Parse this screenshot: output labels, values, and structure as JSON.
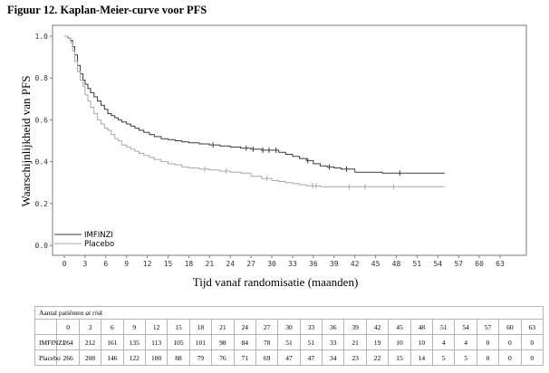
{
  "figure_title": "Figuur 12. Kaplan-Meier-curve voor PFS",
  "chart_data": {
    "type": "line",
    "title": "Figuur 12. Kaplan-Meier-curve voor PFS",
    "xlabel": "Tijd vanaf randomisatie (maanden)",
    "ylabel": "Waarschijnlijkheid van PFS",
    "xlim": [
      0,
      63
    ],
    "ylim": [
      0,
      1
    ],
    "xticks": [
      0,
      3,
      6,
      9,
      12,
      15,
      18,
      21,
      24,
      27,
      30,
      33,
      36,
      39,
      42,
      45,
      48,
      51,
      54,
      57,
      60,
      63
    ],
    "yticks": [
      0.0,
      0.2,
      0.4,
      0.6,
      0.8,
      1.0
    ],
    "ytick_labels": [
      "0.0",
      "0.2",
      "0.4",
      "0.6",
      "0.8",
      "1.0"
    ],
    "grid": false,
    "legend_position": "bottom-left",
    "series": [
      {
        "name": "IMFINZI",
        "color": "#3a3a3a",
        "x": [
          0,
          0.5,
          0.9,
          1.2,
          1.5,
          1.9,
          2.3,
          2.7,
          3.0,
          3.4,
          3.8,
          4.3,
          4.8,
          5.3,
          5.8,
          6.3,
          6.8,
          7.3,
          7.8,
          8.3,
          9.0,
          9.6,
          10.2,
          10.8,
          11.5,
          12.3,
          13.0,
          14.0,
          15.0,
          16.0,
          17.0,
          18.0,
          19.5,
          21.0,
          22.5,
          24.0,
          25.5,
          27.0,
          28.5,
          30.0,
          31.0,
          32.0,
          33.0,
          34.0,
          35.0,
          36.0,
          37.0,
          38.0,
          39.0,
          40.0,
          42.0,
          44.0,
          45.0,
          46.0,
          48.0,
          51.0,
          54.0,
          55.0
        ],
        "y": [
          1.0,
          0.99,
          0.98,
          0.95,
          0.91,
          0.86,
          0.82,
          0.79,
          0.77,
          0.75,
          0.73,
          0.71,
          0.69,
          0.67,
          0.65,
          0.63,
          0.62,
          0.61,
          0.6,
          0.59,
          0.58,
          0.57,
          0.56,
          0.55,
          0.54,
          0.53,
          0.52,
          0.51,
          0.505,
          0.5,
          0.495,
          0.49,
          0.485,
          0.48,
          0.475,
          0.47,
          0.465,
          0.46,
          0.455,
          0.455,
          0.445,
          0.435,
          0.425,
          0.415,
          0.405,
          0.39,
          0.38,
          0.375,
          0.37,
          0.365,
          0.35,
          0.35,
          0.35,
          0.345,
          0.345,
          0.345,
          0.345,
          0.345
        ],
        "censor_x": [
          21.5,
          26.3,
          27.3,
          28.7,
          29.6,
          30.6,
          35.2,
          38.3,
          40.8,
          48.5
        ]
      },
      {
        "name": "Placebo",
        "color": "#a8a8a8",
        "x": [
          0,
          0.5,
          0.9,
          1.2,
          1.5,
          1.9,
          2.3,
          2.7,
          3.0,
          3.4,
          3.8,
          4.3,
          4.8,
          5.3,
          5.8,
          6.3,
          6.8,
          7.3,
          7.8,
          8.3,
          9.0,
          9.6,
          10.2,
          10.8,
          11.5,
          12.3,
          13.0,
          14.0,
          15.0,
          16.0,
          17.0,
          18.0,
          19.5,
          21.0,
          22.5,
          24.0,
          25.5,
          27.0,
          28.5,
          30.0,
          31.0,
          32.0,
          33.0,
          34.0,
          35.0,
          36.0,
          37.0,
          38.0,
          39.0,
          40.0,
          42.0,
          44.0,
          45.0,
          46.0,
          48.0,
          51.0,
          54.0,
          55.0
        ],
        "y": [
          1.0,
          0.99,
          0.97,
          0.93,
          0.88,
          0.83,
          0.79,
          0.76,
          0.72,
          0.69,
          0.66,
          0.63,
          0.6,
          0.58,
          0.56,
          0.55,
          0.53,
          0.51,
          0.5,
          0.48,
          0.47,
          0.46,
          0.45,
          0.44,
          0.43,
          0.42,
          0.41,
          0.4,
          0.39,
          0.385,
          0.375,
          0.37,
          0.365,
          0.36,
          0.355,
          0.35,
          0.345,
          0.33,
          0.32,
          0.31,
          0.305,
          0.3,
          0.295,
          0.29,
          0.285,
          0.285,
          0.28,
          0.28,
          0.28,
          0.28,
          0.28,
          0.28,
          0.28,
          0.28,
          0.28,
          0.28,
          0.28,
          0.28
        ],
        "censor_x": [
          20.3,
          23.4,
          29.3,
          35.9,
          36.4,
          41.2,
          43.5,
          47.6
        ]
      }
    ]
  },
  "risk_table": {
    "caption_text": "Aantal patiënten ",
    "caption_italic": "at risk",
    "months": [
      "0",
      "3",
      "6",
      "9",
      "12",
      "15",
      "18",
      "21",
      "24",
      "27",
      "30",
      "33",
      "36",
      "39",
      "42",
      "45",
      "48",
      "51",
      "54",
      "57",
      "60",
      "63"
    ],
    "rows": [
      {
        "label": "IMFINZI",
        "values": [
          "264",
          "212",
          "161",
          "135",
          "113",
          "105",
          "101",
          "98",
          "84",
          "78",
          "51",
          "51",
          "33",
          "21",
          "19",
          "10",
          "10",
          "4",
          "4",
          "0",
          "0",
          "0"
        ]
      },
      {
        "label": "Placebo",
        "values": [
          "266",
          "208",
          "146",
          "122",
          "100",
          "88",
          "79",
          "76",
          "71",
          "69",
          "47",
          "47",
          "34",
          "23",
          "22",
          "15",
          "14",
          "5",
          "5",
          "0",
          "0",
          "0"
        ]
      }
    ]
  }
}
